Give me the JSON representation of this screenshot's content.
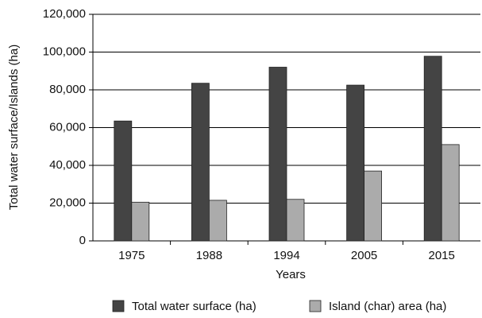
{
  "chart_data": {
    "type": "bar",
    "categories": [
      "1975",
      "1988",
      "1994",
      "2005",
      "2015"
    ],
    "series": [
      {
        "name": "Total water surface (ha)",
        "color": "#444444",
        "values": [
          63500,
          83500,
          92000,
          82500,
          97800
        ]
      },
      {
        "name": "Island (char) area (ha)",
        "color": "#ababab",
        "values": [
          20500,
          21500,
          22000,
          37000,
          51000
        ]
      }
    ],
    "xlabel": "Years",
    "ylabel": "Total water surface/Islands (ha)",
    "ylim": [
      0,
      120000
    ],
    "yticks": [
      0,
      {
        "value": 20000,
        "label": "20,000"
      },
      {
        "value": 40000,
        "label": "40,000"
      },
      {
        "value": 60000,
        "label": "60,000"
      },
      {
        "value": 80000,
        "label": "80,000"
      },
      {
        "value": 100000,
        "label": "100,000"
      },
      {
        "value": 120000,
        "label": "120,000"
      }
    ],
    "grid": true,
    "legend": "bottom"
  }
}
